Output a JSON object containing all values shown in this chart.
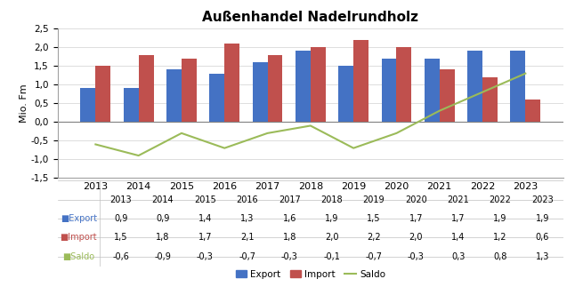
{
  "title": "Außenhandel Nadelrundholz",
  "ylabel": "Mio. Fm",
  "years": [
    2013,
    2014,
    2015,
    2016,
    2017,
    2018,
    2019,
    2020,
    2021,
    2022,
    2023
  ],
  "export": [
    0.9,
    0.9,
    1.4,
    1.3,
    1.6,
    1.9,
    1.5,
    1.7,
    1.7,
    1.9,
    1.9
  ],
  "import_": [
    1.5,
    1.8,
    1.7,
    2.1,
    1.8,
    2.0,
    2.2,
    2.0,
    1.4,
    1.2,
    0.6
  ],
  "saldo": [
    -0.6,
    -0.9,
    -0.3,
    -0.7,
    -0.3,
    -0.1,
    -0.7,
    -0.3,
    0.3,
    0.8,
    1.3
  ],
  "export_color": "#4472C4",
  "import_color": "#C0504D",
  "saldo_color": "#9BBB59",
  "bar_width": 0.35,
  "ylim": [
    -1.5,
    2.5
  ],
  "yticks": [
    -1.5,
    -1.0,
    -0.5,
    0.0,
    0.5,
    1.0,
    1.5,
    2.0,
    2.5
  ],
  "table_rows": {
    "Export": [
      "0,9",
      "0,9",
      "1,4",
      "1,3",
      "1,6",
      "1,9",
      "1,5",
      "1,7",
      "1,7",
      "1,9",
      "1,9"
    ],
    "Import": [
      "1,5",
      "1,8",
      "1,7",
      "2,1",
      "1,8",
      "2,0",
      "2,2",
      "2,0",
      "1,4",
      "1,2",
      "0,6"
    ],
    "Saldo": [
      "-0,6",
      "-0,9",
      "-0,3",
      "-0,7",
      "-0,3",
      "-0,1",
      "-0,7",
      "-0,3",
      "0,3",
      "0,8",
      "1,3"
    ]
  },
  "legend_labels": [
    "Export",
    "Import",
    "Saldo"
  ],
  "background_color": "#FFFFFF",
  "grid_color": "#D0D0D0",
  "table_row_label_colors": [
    "#4472C4",
    "#C0504D",
    "#9BBB59"
  ]
}
